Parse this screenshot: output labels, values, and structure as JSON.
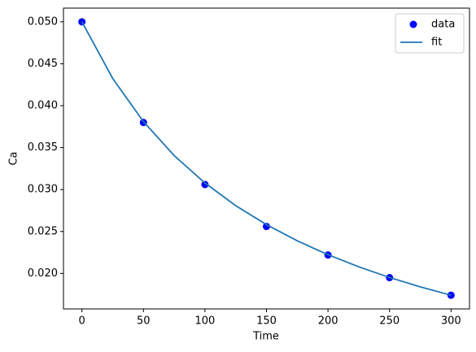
{
  "chart_data": {
    "type": "scatter",
    "x_label": "Time",
    "y_label": "Ca",
    "series": [
      {
        "name": "data",
        "type": "scatter",
        "color": "#0000ff",
        "x": [
          0,
          50,
          100,
          150,
          200,
          250,
          300
        ],
        "values": [
          0.05,
          0.038,
          0.0306,
          0.0256,
          0.0222,
          0.0195,
          0.0174
        ]
      },
      {
        "name": "fit",
        "type": "line",
        "color": "#1f77b4",
        "x": [
          0,
          25,
          50,
          75,
          100,
          125,
          150,
          175,
          200,
          225,
          250,
          275,
          300
        ],
        "values": [
          0.05,
          0.04325,
          0.0381,
          0.03405,
          0.03078,
          0.02808,
          0.02582,
          0.02389,
          0.02223,
          0.02079,
          0.01952,
          0.0184,
          0.0174
        ]
      }
    ],
    "xlim": [
      -15,
      315
    ],
    "ylim": [
      0.01577,
      0.05163
    ],
    "xticks": [
      0,
      50,
      100,
      150,
      200,
      250,
      300
    ],
    "yticks": [
      {
        "value": 0.02,
        "label": "0.020"
      },
      {
        "value": 0.025,
        "label": "0.025"
      },
      {
        "value": 0.03,
        "label": "0.030"
      },
      {
        "value": 0.035,
        "label": "0.035"
      },
      {
        "value": 0.04,
        "label": "0.040"
      },
      {
        "value": 0.045,
        "label": "0.045"
      },
      {
        "value": 0.05,
        "label": "0.050"
      }
    ],
    "grid": false,
    "legend": "upper right"
  }
}
